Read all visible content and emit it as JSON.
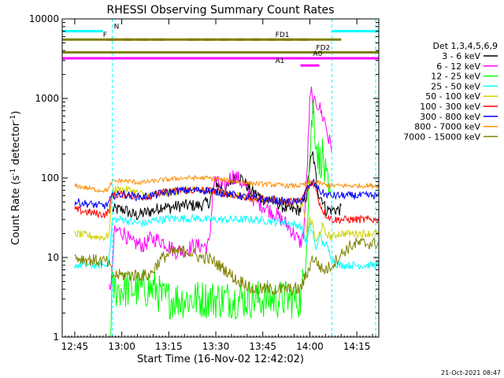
{
  "chart_data": {
    "type": "line",
    "title": "RHESSI Observing Summary Count Rates",
    "xlabel": "Start Time (16-Nov-02 12:42:02)",
    "ylabel_main": "Count Rate (s",
    "ylabel_sup1": "-1",
    "ylabel_mid": " detector",
    "ylabel_sup2": "-1",
    "ylabel_end": ")",
    "yscale": "log",
    "ylim": [
      1,
      10000
    ],
    "xlim_minutes": [
      -4,
      97
    ],
    "x_ticks": [
      {
        "min": 0,
        "label": "12:45"
      },
      {
        "min": 15,
        "label": "13:00"
      },
      {
        "min": 30,
        "label": "13:15"
      },
      {
        "min": 45,
        "label": "13:30"
      },
      {
        "min": 60,
        "label": "13:45"
      },
      {
        "min": 75,
        "label": "14:00"
      },
      {
        "min": 90,
        "label": "14:15"
      }
    ],
    "y_ticks": [
      {
        "value": 1,
        "label": "1"
      },
      {
        "value": 10,
        "label": "10"
      },
      {
        "value": 100,
        "label": "100"
      },
      {
        "value": 1000,
        "label": "1000"
      },
      {
        "value": 10000,
        "label": "10000"
      }
    ],
    "legend_title": "Det 1,3,4,5,6,9",
    "legend_placement": "right",
    "series": [
      {
        "name": "3 - 6 keV",
        "color": "#000000"
      },
      {
        "name": "6 - 12 keV",
        "color": "#ff00ff"
      },
      {
        "name": "12 - 25 keV",
        "color": "#00ff00"
      },
      {
        "name": "25 - 50 keV",
        "color": "#00ffff"
      },
      {
        "name": "50 - 100 keV",
        "color": "#d0d000"
      },
      {
        "name": "100 - 300 keV",
        "color": "#ff0000"
      },
      {
        "name": "300 - 800 keV",
        "color": "#0000ff"
      },
      {
        "name": "800 - 7000 keV",
        "color": "#ff8c00"
      },
      {
        "name": "7000 - 15000 keV",
        "color": "#808000"
      }
    ],
    "flag_bars": [
      {
        "label": "N",
        "color": "#00ffff",
        "level": 7000
      },
      {
        "label": "F",
        "color": "#e00000",
        "level": 5500
      },
      {
        "label": "FD1",
        "color": "#808000",
        "level": 5500
      },
      {
        "label": "FD2",
        "color": "#808000",
        "level": 3800
      },
      {
        "label": "A0",
        "color": "#ff00ff",
        "level": 3200
      },
      {
        "label": "A1",
        "color": "#ff00ff",
        "level": 2600
      }
    ],
    "timestamp": "21-Oct-2021 08:47"
  }
}
